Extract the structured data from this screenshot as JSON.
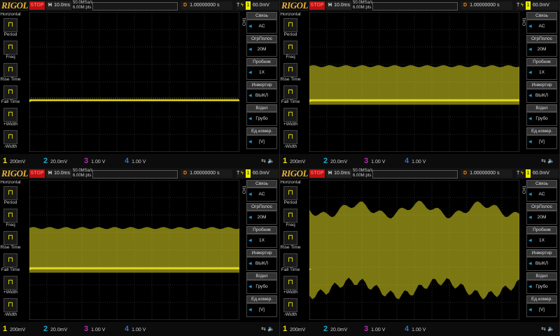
{
  "brand": "RIGOL",
  "run_state": "STOP",
  "h_label": "H",
  "timebase": "10.0ms",
  "sample_rate": "50.0MSa/s",
  "mem_depth": "6.00M pts",
  "delay_label": "D",
  "delay": "1.00000000 s",
  "trigger_label": "T",
  "trigger_channel": "1",
  "trigger_level": "60.0mV",
  "sidebar": {
    "header": "Horizontal",
    "items": [
      {
        "label": "Period",
        "icon": "period-icon"
      },
      {
        "label": "Freq",
        "icon": "freq-icon"
      },
      {
        "label": "Rise Time",
        "icon": "rise-time-icon"
      },
      {
        "label": "Fall Time",
        "icon": "fall-time-icon"
      },
      {
        "label": "+Width",
        "icon": "pos-width-icon"
      },
      {
        "label": "-Width",
        "icon": "neg-width-icon"
      }
    ]
  },
  "menu": {
    "channel": "CH1",
    "items": [
      {
        "label": "Связь",
        "value": "AC"
      },
      {
        "label": "ОгрПолос",
        "value": "20M"
      },
      {
        "label": "Пробник",
        "value": "1X"
      },
      {
        "label": "Инвертир",
        "value": "ВЫКЛ"
      },
      {
        "label": "В/дел",
        "value": "Грубо"
      },
      {
        "label": "Ед.измер.",
        "value": "[V]"
      }
    ]
  },
  "channels": [
    {
      "num": "1",
      "scale": "200mV",
      "color": "#f0e020"
    },
    {
      "num": "2",
      "scale": "20.0mV",
      "color": "#2aa8c8"
    },
    {
      "num": "3",
      "scale": "1.00 V",
      "color": "#b030b0"
    },
    {
      "num": "4",
      "scale": "1.00 V",
      "color": "#2a70d0"
    }
  ],
  "trace_color": "#e0d820",
  "panels": [
    {
      "trace": "line"
    },
    {
      "trace": "band",
      "top": 3.1,
      "bottom": 5.3
    },
    {
      "trace": "band",
      "top": 2.75,
      "bottom": 5.3
    },
    {
      "trace": "noisy",
      "top": 1.7,
      "bottom": 6.2
    }
  ]
}
